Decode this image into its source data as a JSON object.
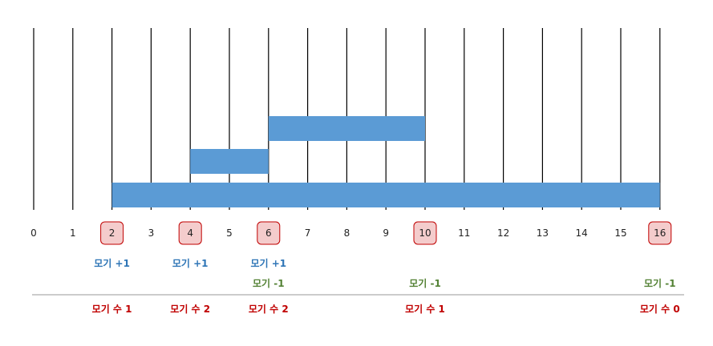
{
  "diagram": {
    "axis": {
      "ticks": [
        "0",
        "1",
        "2",
        "3",
        "4",
        "5",
        "6",
        "7",
        "8",
        "9",
        "10",
        "11",
        "12",
        "13",
        "14",
        "15",
        "16"
      ],
      "highlighted": [
        2,
        4,
        6,
        10,
        16
      ]
    },
    "intervals": [
      {
        "start": 2,
        "end": 16
      },
      {
        "start": 4,
        "end": 6
      },
      {
        "start": 6,
        "end": 10
      }
    ],
    "plus_row": [
      {
        "x": 2,
        "text": "모기 +1"
      },
      {
        "x": 4,
        "text": "모기 +1"
      },
      {
        "x": 6,
        "text": "모기 +1"
      }
    ],
    "minus_row": [
      {
        "x": 6,
        "text": "모기 -1"
      },
      {
        "x": 10,
        "text": "모기 -1"
      },
      {
        "x": 16,
        "text": "모기 -1"
      }
    ],
    "count_row": [
      {
        "x": 2,
        "text": "모기 수 1"
      },
      {
        "x": 4,
        "text": "모기 수 2"
      },
      {
        "x": 6,
        "text": "모기 수 2"
      },
      {
        "x": 10,
        "text": "모기 수 1"
      },
      {
        "x": 16,
        "text": "모기 수 0"
      }
    ],
    "colors": {
      "bar": "#5b9bd5",
      "plus": "#2e75b6",
      "minus": "#548235",
      "count": "#c00000",
      "highlight_fill": "#f4cccc",
      "highlight_stroke": "#c00000",
      "line": "#000000",
      "separator": "#999999"
    }
  }
}
